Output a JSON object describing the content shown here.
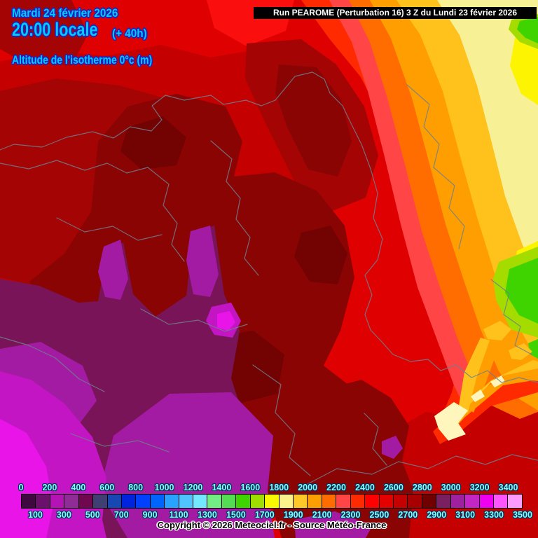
{
  "header": {
    "date_line": "Mardi 24 février 2026",
    "time_line": "20:00 locale",
    "offset_label": "(+ 40h)",
    "param_label": "Altitude de l'isotherme 0°c (m)",
    "run_label": "Run PEAROME (Perturbation 16) 3 Z du Lundi 23 février 2026",
    "title_color": "#00CCFF"
  },
  "legend": {
    "unit": "m",
    "label_color": "#84FFFF",
    "top_labels": [
      "0",
      "200",
      "400",
      "600",
      "800",
      "1000",
      "1200",
      "1400",
      "1600",
      "1800",
      "2000",
      "2200",
      "2400",
      "2600",
      "2800",
      "3000",
      "3200",
      "3400"
    ],
    "bottom_labels": [
      "100",
      "300",
      "500",
      "700",
      "900",
      "1100",
      "1300",
      "1500",
      "1700",
      "1900",
      "2100",
      "2300",
      "2500",
      "2700",
      "2900",
      "3100",
      "3300",
      "3500"
    ],
    "cells": [
      "#400840",
      "#6B106B",
      "#B414B4",
      "#8F2C96",
      "#700850",
      "#3F3F73",
      "#1747B2",
      "#0023DD",
      "#0040FF",
      "#0064FF",
      "#29A3FF",
      "#4FC4FF",
      "#73E8FF",
      "#74EC86",
      "#55DC55",
      "#3FD400",
      "#9EDE00",
      "#F8F800",
      "#FCF28C",
      "#FFC829",
      "#FF9E00",
      "#FF6D00",
      "#FF4545",
      "#FF2A00",
      "#FF0000",
      "#E50000",
      "#C40000",
      "#A80000",
      "#700000",
      "#7A2060",
      "#A021A0",
      "#C426C4",
      "#F000F0",
      "#FF55FF",
      "#FF9AFF"
    ]
  },
  "footer": {
    "copyright": "Copyright © 2026 Meteociel.fr - Source Météo-France"
  },
  "map_palette": {
    "base_red": "#DF0101",
    "bright_red": "#FB0E0E",
    "red_dark": "#C40000",
    "red_darker": "#A40404",
    "maroon": "#8B0404",
    "deep_maroon": "#730202",
    "wine": "#7A1458",
    "purple": "#A31AA3",
    "magenta": "#C415C4",
    "magenta_bright": "#E814E8",
    "orange_red": "#FF2A00",
    "salmon": "#FF4545",
    "orange": "#FF6D00",
    "orange2": "#FF9E00",
    "gold": "#FFC21C",
    "pale_yellow": "#F7F095",
    "yellow": "#FCF400",
    "yellow_green": "#A5DC00",
    "green": "#3FD400",
    "cream": "#FFF6BE",
    "border_line": "#6F7F8D"
  }
}
